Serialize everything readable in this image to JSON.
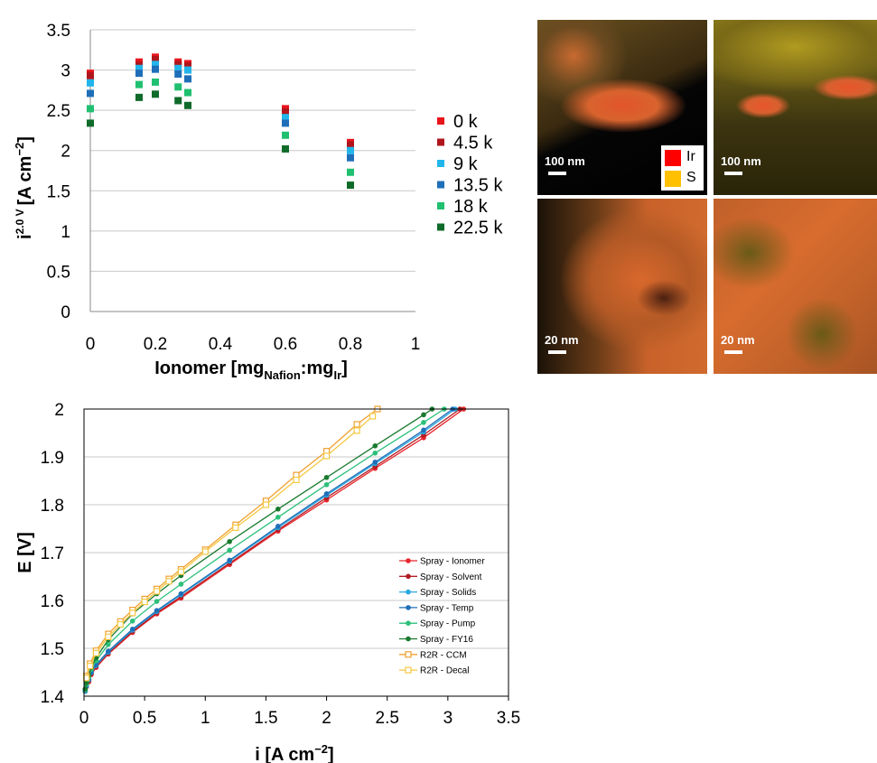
{
  "chart_data": [
    {
      "type": "scatter",
      "title": "",
      "ylabel_main": "i",
      "ylabel_sup": "2.0 V",
      "ylabel_unit": "[A cm",
      "ylabel_unit_sup": "−2",
      "ylabel_close": "]",
      "xlabel_main": "Ionomer [mg",
      "xlabel_sub1": "Nafion",
      "xlabel_mid": ":mg",
      "xlabel_sub2": "Ir",
      "xlabel_close": "]",
      "xlim": [
        0,
        1
      ],
      "ylim": [
        0,
        3.5
      ],
      "xticks": [
        0,
        0.2,
        0.4,
        0.6,
        0.8,
        1
      ],
      "xtick_labels": [
        "0",
        "0.2",
        "0.4",
        "0.6",
        "0.8",
        "1"
      ],
      "yticks": [
        0,
        0.5,
        1,
        1.5,
        2,
        2.5,
        3,
        3.5
      ],
      "ytick_labels": [
        "0",
        "0.5",
        "1",
        "1.5",
        "2",
        "2.5",
        "3",
        "3.5"
      ],
      "grid": "horizontal",
      "legend_position": "right",
      "x": [
        0,
        0.15,
        0.2,
        0.27,
        0.3,
        0.6,
        0.8
      ],
      "series": [
        {
          "name": "0 k",
          "color": "#e8141c",
          "values": [
            2.96,
            3.1,
            3.16,
            3.1,
            3.08,
            2.52,
            2.1
          ]
        },
        {
          "name": "4.5 k",
          "color": "#b0151b",
          "values": [
            2.93,
            3.06,
            3.13,
            3.07,
            3.05,
            2.48,
            2.07
          ]
        },
        {
          "name": "9 k",
          "color": "#22b5ea",
          "values": [
            2.84,
            3.02,
            3.07,
            3.02,
            3.0,
            2.41,
            2.0
          ]
        },
        {
          "name": "13.5 k",
          "color": "#1f6fb8",
          "values": [
            2.71,
            2.96,
            3.01,
            2.95,
            2.89,
            2.34,
            1.91
          ]
        },
        {
          "name": "18 k",
          "color": "#1fc070",
          "values": [
            2.52,
            2.82,
            2.85,
            2.79,
            2.72,
            2.19,
            1.73
          ]
        },
        {
          "name": "22.5 k",
          "color": "#0f6b2a",
          "values": [
            2.34,
            2.66,
            2.7,
            2.62,
            2.56,
            2.02,
            1.57
          ]
        }
      ]
    },
    {
      "type": "line",
      "title": "",
      "ylabel": "E [V]",
      "xlabel_main": "i [A cm",
      "xlabel_sup": "−2",
      "xlabel_close": "]",
      "xlim": [
        0,
        3.5
      ],
      "ylim": [
        1.4,
        2.0
      ],
      "xticks": [
        0,
        0.5,
        1,
        1.5,
        2,
        2.5,
        3,
        3.5
      ],
      "xtick_labels": [
        "0",
        "0.5",
        "1",
        "1.5",
        "2",
        "2.5",
        "3",
        "3.5"
      ],
      "yticks": [
        1.4,
        1.5,
        1.6,
        1.7,
        1.8,
        1.9,
        2.0
      ],
      "ytick_labels": [
        "1.4",
        "1.5",
        "1.6",
        "1.7",
        "1.8",
        "1.9",
        "2"
      ],
      "grid": "horizontal",
      "legend_position": "bottom-right",
      "series": [
        {
          "name": "Spray - Ionomer",
          "color": "#e8262c",
          "marker": "circle",
          "x": [
            0.01,
            0.02,
            0.04,
            0.06,
            0.1,
            0.2,
            0.4,
            0.6,
            0.8,
            1.2,
            1.6,
            2.0,
            2.4,
            2.8,
            3.13
          ],
          "y": [
            1.41,
            1.42,
            1.43,
            1.445,
            1.46,
            1.488,
            1.533,
            1.572,
            1.605,
            1.675,
            1.745,
            1.81,
            1.876,
            1.94,
            2.0
          ]
        },
        {
          "name": "Spray - Solvent",
          "color": "#b01c24",
          "marker": "circle",
          "x": [
            0.01,
            0.02,
            0.04,
            0.06,
            0.1,
            0.2,
            0.4,
            0.6,
            0.8,
            1.2,
            1.6,
            2.0,
            2.4,
            2.8,
            3.1
          ],
          "y": [
            1.41,
            1.42,
            1.432,
            1.447,
            1.462,
            1.49,
            1.535,
            1.574,
            1.608,
            1.678,
            1.748,
            1.815,
            1.88,
            1.946,
            2.0
          ]
        },
        {
          "name": "Spray - Solids",
          "color": "#2aa8e0",
          "marker": "circle",
          "x": [
            0.01,
            0.02,
            0.04,
            0.06,
            0.1,
            0.2,
            0.4,
            0.6,
            0.8,
            1.2,
            1.6,
            2.0,
            2.4,
            2.8,
            3.06
          ],
          "y": [
            1.41,
            1.421,
            1.434,
            1.449,
            1.464,
            1.492,
            1.538,
            1.577,
            1.612,
            1.682,
            1.752,
            1.82,
            1.886,
            1.952,
            2.0
          ]
        },
        {
          "name": "Spray - Temp",
          "color": "#1f6fb8",
          "marker": "circle",
          "x": [
            0.01,
            0.02,
            0.04,
            0.06,
            0.1,
            0.2,
            0.4,
            0.6,
            0.8,
            1.2,
            1.6,
            2.0,
            2.4,
            2.8,
            3.04
          ],
          "y": [
            1.412,
            1.422,
            1.435,
            1.45,
            1.466,
            1.494,
            1.54,
            1.579,
            1.614,
            1.684,
            1.755,
            1.823,
            1.889,
            1.956,
            2.0
          ]
        },
        {
          "name": "Spray - Pump",
          "color": "#2cc07a",
          "marker": "circle",
          "x": [
            0.01,
            0.02,
            0.04,
            0.06,
            0.1,
            0.2,
            0.4,
            0.6,
            0.8,
            1.2,
            1.6,
            2.0,
            2.4,
            2.8,
            2.97
          ],
          "y": [
            1.413,
            1.425,
            1.44,
            1.456,
            1.474,
            1.508,
            1.557,
            1.598,
            1.634,
            1.705,
            1.774,
            1.842,
            1.908,
            1.972,
            2.0
          ]
        },
        {
          "name": "Spray - FY16",
          "color": "#197a2e",
          "marker": "circle",
          "x": [
            0.01,
            0.02,
            0.04,
            0.06,
            0.1,
            0.2,
            0.4,
            0.6,
            0.8,
            1.2,
            1.6,
            2.0,
            2.4,
            2.8,
            2.87
          ],
          "y": [
            1.415,
            1.428,
            1.444,
            1.46,
            1.48,
            1.518,
            1.572,
            1.614,
            1.652,
            1.723,
            1.791,
            1.857,
            1.923,
            1.988,
            2.0
          ]
        },
        {
          "name": "R2R - CCM",
          "color": "#f0a030",
          "marker": "square",
          "x": [
            0.02,
            0.05,
            0.1,
            0.2,
            0.3,
            0.4,
            0.5,
            0.6,
            0.7,
            0.8,
            1.0,
            1.25,
            1.5,
            1.75,
            2.0,
            2.25,
            2.42
          ],
          "y": [
            1.442,
            1.468,
            1.495,
            1.53,
            1.556,
            1.58,
            1.603,
            1.624,
            1.645,
            1.665,
            1.706,
            1.758,
            1.808,
            1.862,
            1.912,
            1.968,
            2.0
          ]
        },
        {
          "name": "R2R - Decal",
          "color": "#f5c842",
          "marker": "square",
          "x": [
            0.02,
            0.05,
            0.1,
            0.2,
            0.3,
            0.4,
            0.5,
            0.6,
            0.7,
            0.8,
            1.0,
            1.25,
            1.5,
            1.75,
            2.0,
            2.25,
            2.38
          ],
          "y": [
            1.438,
            1.463,
            1.49,
            1.524,
            1.55,
            1.574,
            1.597,
            1.619,
            1.64,
            1.66,
            1.702,
            1.752,
            1.8,
            1.852,
            1.902,
            1.955,
            1.985
          ]
        }
      ]
    }
  ],
  "micrographs": {
    "panels": [
      {
        "scale_label": "100 nm"
      },
      {
        "scale_label": "100 nm"
      },
      {
        "scale_label": "20 nm"
      },
      {
        "scale_label": "20 nm"
      }
    ],
    "legend": [
      {
        "label": "Ir",
        "color": "#ff0000"
      },
      {
        "label": "S",
        "color": "#ffc000"
      }
    ]
  }
}
